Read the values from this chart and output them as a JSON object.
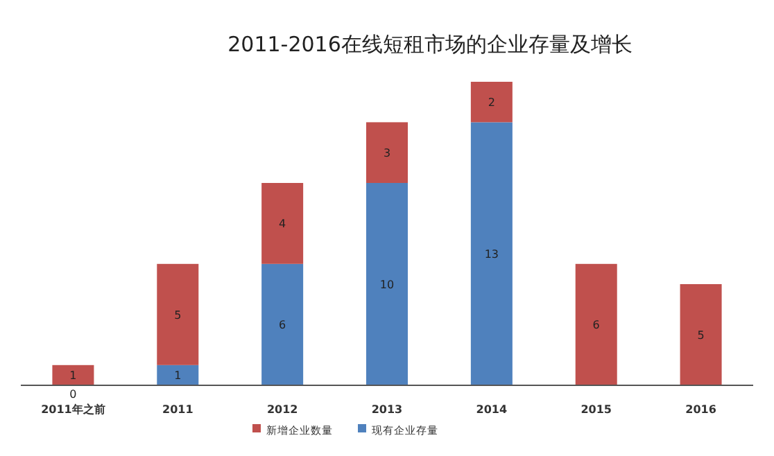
{
  "chart_data": {
    "type": "bar",
    "title": "2011-2016在线短租市场的企业存量及增长",
    "stacked": true,
    "data_labels": true,
    "legend": "bottom",
    "categories": [
      "2011年之前",
      "2011",
      "2012",
      "2013",
      "2014",
      "2015",
      "2016"
    ],
    "series": [
      {
        "name": "现有企业存量",
        "color": "#4f81bd",
        "values": [
          0,
          1,
          6,
          10,
          13,
          null,
          null
        ]
      },
      {
        "name": "新增企业数量",
        "color": "#c0504d",
        "values": [
          1,
          5,
          4,
          3,
          2,
          6,
          5
        ]
      }
    ]
  }
}
